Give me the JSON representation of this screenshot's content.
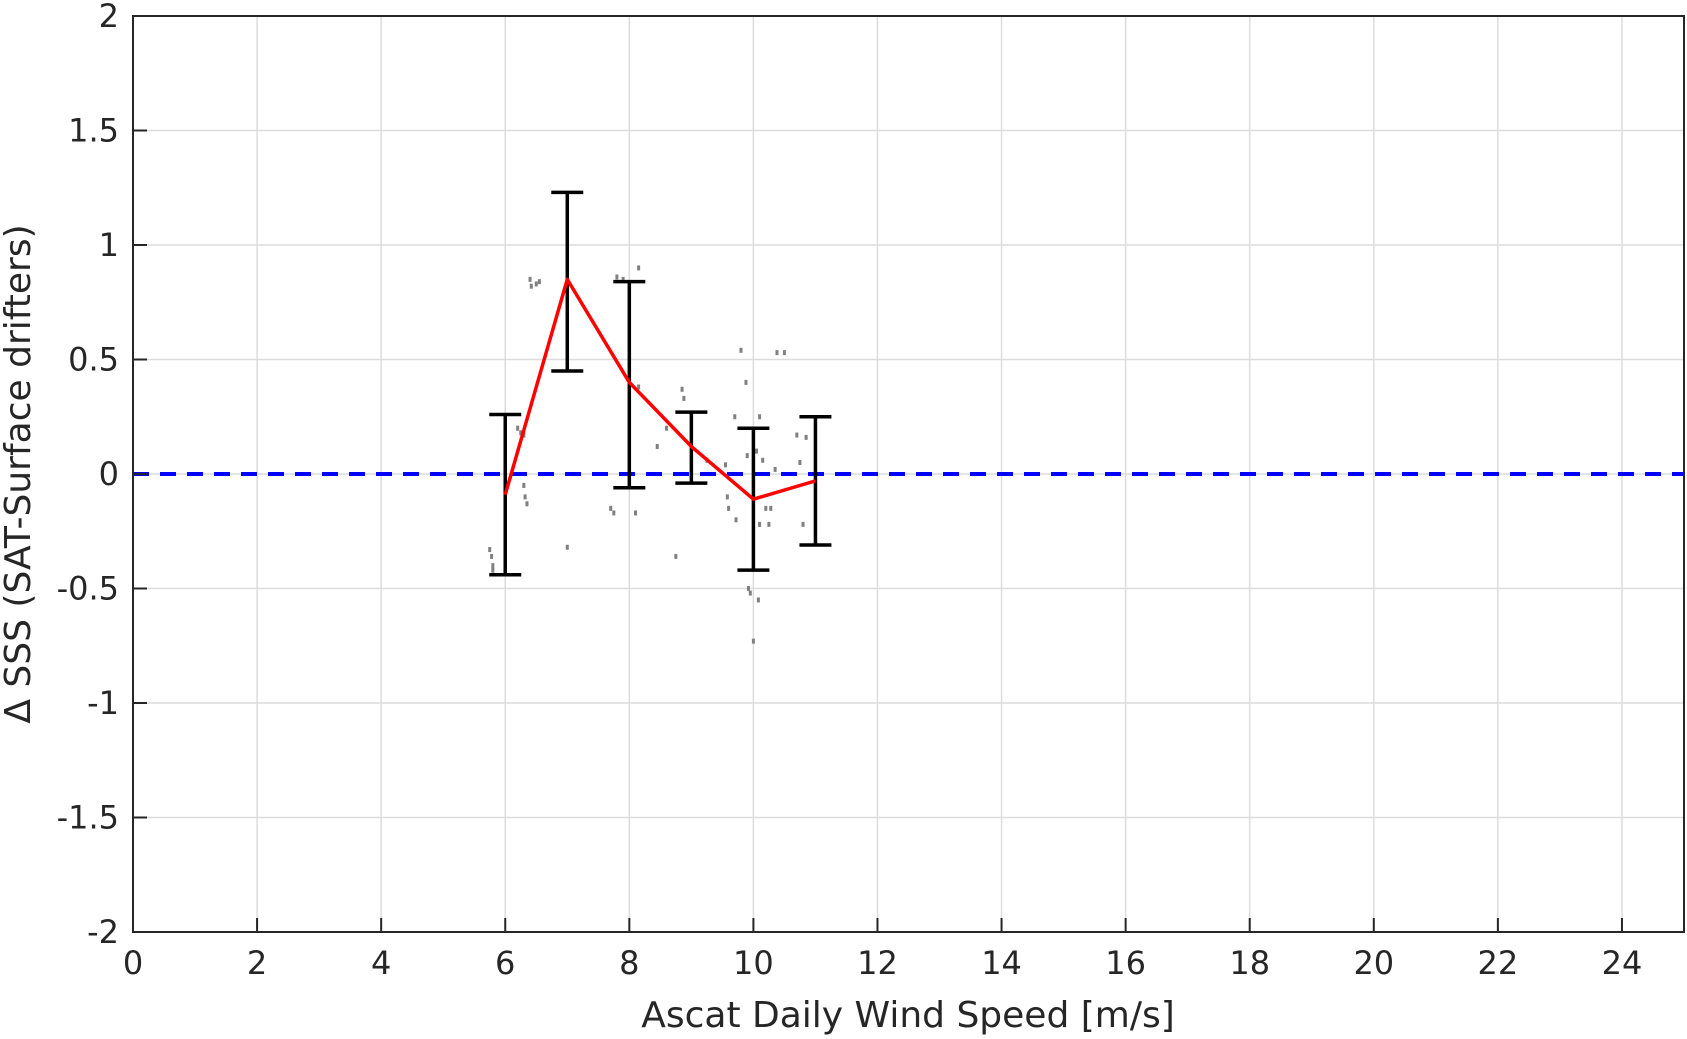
{
  "chart_data": {
    "type": "line",
    "xlabel": "Ascat Daily Wind Speed [m/s]",
    "ylabel": "Δ SSS (SAT-Surface drifters)",
    "xlim": [
      0,
      25
    ],
    "ylim": [
      -2,
      2
    ],
    "xticks": [
      0,
      2,
      4,
      6,
      8,
      10,
      12,
      14,
      16,
      18,
      20,
      22,
      24
    ],
    "yticks": [
      -2,
      -1.5,
      -1,
      -0.5,
      0,
      0.5,
      1,
      1.5,
      2
    ],
    "ytick_labels": [
      "-2",
      "-1.5",
      "-1",
      "-0.5",
      "0",
      "0.5",
      "1",
      "1.5",
      "2"
    ],
    "grid": true,
    "series": [
      {
        "kind": "mean_with_errorbars",
        "color": "#ff0000",
        "errorbar_color": "#000000",
        "x": [
          6,
          7,
          8,
          9,
          10,
          11
        ],
        "y": [
          -0.09,
          0.85,
          0.4,
          0.12,
          -0.11,
          -0.03
        ],
        "y_low": [
          -0.44,
          0.45,
          -0.06,
          -0.04,
          -0.42,
          -0.31
        ],
        "y_high": [
          0.26,
          1.23,
          0.84,
          0.27,
          0.2,
          0.25
        ]
      },
      {
        "kind": "reference_line",
        "color": "#0000ff",
        "style": "dashed",
        "y": 0
      },
      {
        "kind": "scatter",
        "color": "#808080",
        "points": [
          [
            5.75,
            -0.33
          ],
          [
            5.78,
            -0.36
          ],
          [
            5.8,
            -0.4
          ],
          [
            5.8,
            -0.42
          ],
          [
            6.2,
            0.2
          ],
          [
            6.25,
            0.18
          ],
          [
            6.3,
            0.17
          ],
          [
            6.3,
            -0.05
          ],
          [
            6.32,
            -0.1
          ],
          [
            6.35,
            -0.13
          ],
          [
            6.4,
            0.85
          ],
          [
            6.42,
            0.82
          ],
          [
            6.5,
            0.83
          ],
          [
            6.55,
            0.84
          ],
          [
            7.0,
            -0.32
          ],
          [
            7.7,
            -0.15
          ],
          [
            7.75,
            -0.17
          ],
          [
            7.8,
            0.86
          ],
          [
            7.9,
            0.85
          ],
          [
            8.1,
            -0.17
          ],
          [
            8.15,
            0.9
          ],
          [
            8.15,
            0.38
          ],
          [
            8.45,
            0.12
          ],
          [
            8.6,
            0.2
          ],
          [
            8.75,
            -0.36
          ],
          [
            8.85,
            0.37
          ],
          [
            8.88,
            0.33
          ],
          [
            9.25,
            0.06
          ],
          [
            9.55,
            0.04
          ],
          [
            9.58,
            -0.1
          ],
          [
            9.6,
            -0.15
          ],
          [
            9.7,
            0.25
          ],
          [
            9.72,
            -0.2
          ],
          [
            9.8,
            0.54
          ],
          [
            9.88,
            0.4
          ],
          [
            9.9,
            0.08
          ],
          [
            9.92,
            -0.5
          ],
          [
            9.95,
            -0.52
          ],
          [
            10.0,
            -0.73
          ],
          [
            10.05,
            0.1
          ],
          [
            10.08,
            -0.55
          ],
          [
            10.1,
            0.25
          ],
          [
            10.1,
            -0.22
          ],
          [
            10.15,
            0.06
          ],
          [
            10.2,
            -0.15
          ],
          [
            10.25,
            -0.22
          ],
          [
            10.28,
            -0.15
          ],
          [
            10.35,
            0.02
          ],
          [
            10.38,
            0.53
          ],
          [
            10.5,
            0.53
          ],
          [
            10.7,
            0.17
          ],
          [
            10.75,
            0.05
          ],
          [
            10.8,
            -0.22
          ],
          [
            10.85,
            0.16
          ]
        ]
      }
    ]
  }
}
